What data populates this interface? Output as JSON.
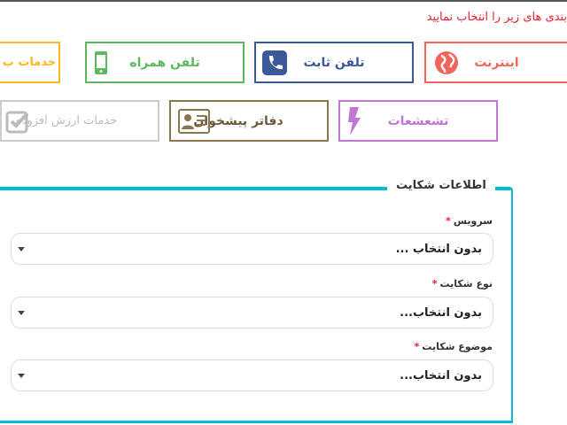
{
  "instruction": "بندی های زیر را انتخاب نمایید",
  "categories": [
    {
      "label": "اینترنت",
      "icon": "globe-icon",
      "color": "#f0655a"
    },
    {
      "label": "تلفن ثابت",
      "icon": "phone-icon",
      "color": "#3b5998"
    },
    {
      "label": "تلفن همراه",
      "icon": "mobile-icon",
      "color": "#5cb85c"
    },
    {
      "label": "خدمات ب",
      "icon": "",
      "color": "#f9b91e"
    },
    {
      "label": "تشعشعات",
      "icon": "lightning-icon",
      "color": "#c176d3"
    },
    {
      "label": "دفاتر پیشخوان",
      "icon": "id-card-icon",
      "color": "#8b7650"
    },
    {
      "label": "خدمات ارزش افزوده",
      "icon": "checkbox-icon",
      "color": "#bbbbbb"
    }
  ],
  "form": {
    "legend": "اطلاعات شکایت",
    "fields": [
      {
        "label": "سرویس",
        "required": "*",
        "value": "بدون انتخاب ..."
      },
      {
        "label": "نوع شکایت",
        "required": "*",
        "value": "بدون انتخاب..."
      },
      {
        "label": "موضوع شکایت",
        "required": "*",
        "value": "بدون انتخاب..."
      }
    ]
  }
}
